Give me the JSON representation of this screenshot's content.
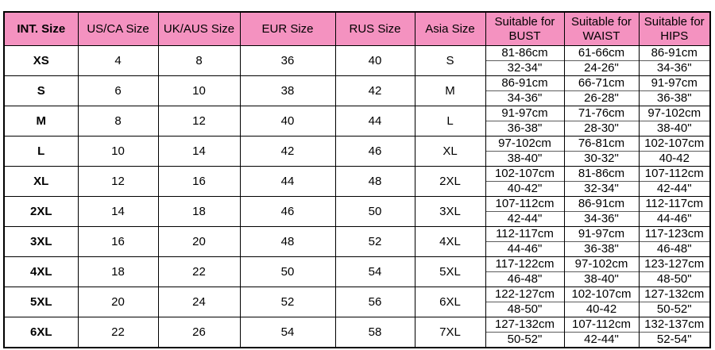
{
  "table": {
    "header_bg": "#F492C0",
    "border_color": "#000000",
    "columns": [
      "INT. Size",
      "US/CA Size",
      "UK/AUS Size",
      "EUR Size",
      "RUS Size",
      "Asia Size",
      "Suitable for BUST",
      "Suitable for WAIST",
      "Suitable for HIPS"
    ],
    "rows": [
      {
        "sizes": [
          "XS",
          "4",
          "8",
          "36",
          "40",
          "S"
        ],
        "bust": [
          "81-86cm",
          "32-34\""
        ],
        "waist": [
          "61-66cm",
          "24-26\""
        ],
        "hips": [
          "86-91cm",
          "34-36\""
        ]
      },
      {
        "sizes": [
          "S",
          "6",
          "10",
          "38",
          "42",
          "M"
        ],
        "bust": [
          "86-91cm",
          "34-36\""
        ],
        "waist": [
          "66-71cm",
          "26-28\""
        ],
        "hips": [
          "91-97cm",
          "36-38\""
        ]
      },
      {
        "sizes": [
          "M",
          "8",
          "12",
          "40",
          "44",
          "L"
        ],
        "bust": [
          "91-97cm",
          "36-38\""
        ],
        "waist": [
          "71-76cm",
          "28-30\""
        ],
        "hips": [
          "97-102cm",
          "38-40\""
        ]
      },
      {
        "sizes": [
          "L",
          "10",
          "14",
          "42",
          "46",
          "XL"
        ],
        "bust": [
          "97-102cm",
          "38-40\""
        ],
        "waist": [
          "76-81cm",
          "30-32\""
        ],
        "hips": [
          "102-107cm",
          "40-42"
        ]
      },
      {
        "sizes": [
          "XL",
          "12",
          "16",
          "44",
          "48",
          "2XL"
        ],
        "bust": [
          "102-107cm",
          "40-42\""
        ],
        "waist": [
          "81-86cm",
          "32-34\""
        ],
        "hips": [
          "107-112cm",
          "42-44\""
        ]
      },
      {
        "sizes": [
          "2XL",
          "14",
          "18",
          "46",
          "50",
          "3XL"
        ],
        "bust": [
          "107-112cm",
          "42-44\""
        ],
        "waist": [
          "86-91cm",
          "34-36\""
        ],
        "hips": [
          "112-117cm",
          "44-46\""
        ]
      },
      {
        "sizes": [
          "3XL",
          "16",
          "20",
          "48",
          "52",
          "4XL"
        ],
        "bust": [
          "112-117cm",
          "44-46\""
        ],
        "waist": [
          "91-97cm",
          "36-38\""
        ],
        "hips": [
          "117-123cm",
          "46-48\""
        ]
      },
      {
        "sizes": [
          "4XL",
          "18",
          "22",
          "50",
          "54",
          "5XL"
        ],
        "bust": [
          "117-122cm",
          "46-48\""
        ],
        "waist": [
          "97-102cm",
          "38-40\""
        ],
        "hips": [
          "123-127cm",
          "48-50\""
        ]
      },
      {
        "sizes": [
          "5XL",
          "20",
          "24",
          "52",
          "56",
          "6XL"
        ],
        "bust": [
          "122-127cm",
          "48-50\""
        ],
        "waist": [
          "102-107cm",
          "40-42"
        ],
        "hips": [
          "127-132cm",
          "50-52\""
        ]
      },
      {
        "sizes": [
          "6XL",
          "22",
          "26",
          "54",
          "58",
          "7XL"
        ],
        "bust": [
          "127-132cm",
          "50-52\""
        ],
        "waist": [
          "107-112cm",
          "42-44\""
        ],
        "hips": [
          "132-137cm",
          "52-54\""
        ]
      }
    ]
  }
}
